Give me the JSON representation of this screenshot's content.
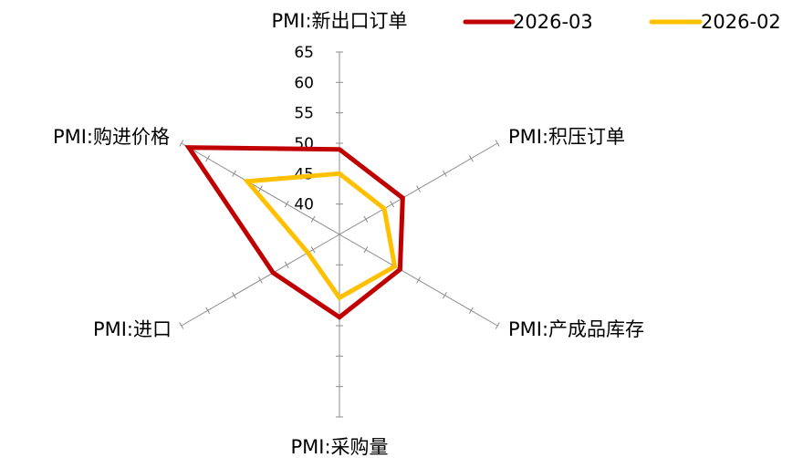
{
  "chart_data": {
    "type": "radar",
    "axes": [
      "PMI:新出口订单",
      "PMI:积压订单",
      "PMI:产成品库存",
      "PMI:采购量",
      "PMI:进口",
      "PMI:购进价格"
    ],
    "scale": {
      "min": 35,
      "max": 65,
      "step": 5
    },
    "tick_labels": [
      "40",
      "45",
      "50",
      "55",
      "60",
      "65"
    ],
    "grid": false,
    "legend_position": "top-right",
    "series": [
      {
        "name": "2026-03",
        "color": "#C00000",
        "values": [
          49.0,
          47.0,
          46.5,
          48.6,
          47.6,
          63.6
        ]
      },
      {
        "name": "2026-02",
        "color": "#FFC000",
        "values": [
          45.0,
          43.5,
          45.5,
          45.4,
          41.0,
          52.5
        ]
      }
    ]
  }
}
